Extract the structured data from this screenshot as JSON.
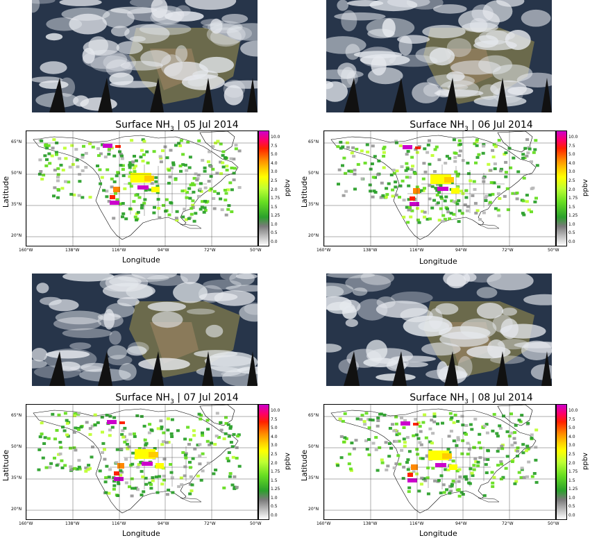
{
  "panels": [
    {
      "title_prefix": "Surface NH",
      "title_sub": "3",
      "title_date": " | 05 Jul 2014"
    },
    {
      "title_prefix": "Surface NH",
      "title_sub": "3",
      "title_date": " | 06 Jul 2014"
    },
    {
      "title_prefix": "Surface NH",
      "title_sub": "3",
      "title_date": " | 07 Jul 2014"
    },
    {
      "title_prefix": "Surface NH",
      "title_sub": "3",
      "title_date": " | 08 Jul 2014"
    }
  ],
  "axes": {
    "xlabel": "Longitude",
    "ylabel": "Latitude",
    "lat_ticks": [
      "65°N",
      "50°N",
      "35°N",
      "20°N"
    ],
    "lon_ticks": [
      "160°W",
      "138°W",
      "116°W",
      "94°W",
      "72°W",
      "50°W"
    ]
  },
  "colorbar": {
    "unit": "ppbv",
    "ticks": [
      "10.0",
      "7.5",
      "5.0",
      "4.0",
      "3.0",
      "2.5",
      "2.0",
      "1.75",
      "1.5",
      "1.25",
      "1.0",
      "0.5",
      "0.0"
    ],
    "colors": {
      "low": "#ffffff",
      "grey": "#9a9a9a",
      "green": "#2ca02c",
      "yellow": "#ffff00",
      "orange": "#ff8800",
      "red": "#ff2200",
      "magenta": "#cc00cc"
    }
  }
}
